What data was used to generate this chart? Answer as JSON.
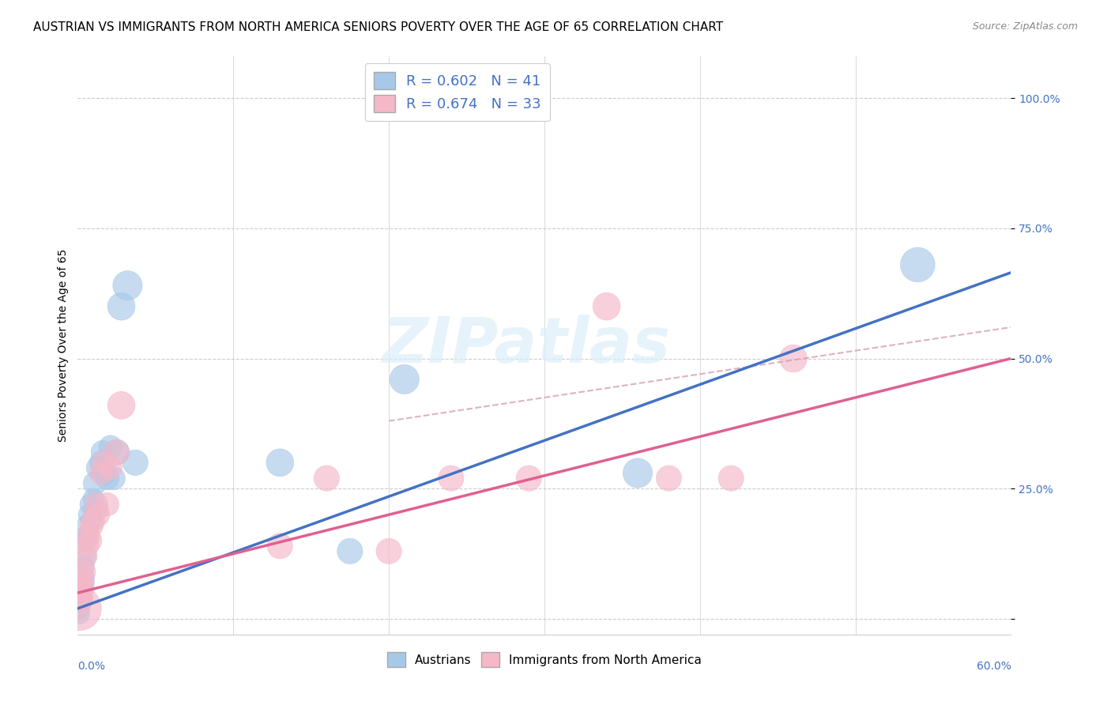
{
  "title": "AUSTRIAN VS IMMIGRANTS FROM NORTH AMERICA SENIORS POVERTY OVER THE AGE OF 65 CORRELATION CHART",
  "source": "Source: ZipAtlas.com",
  "ylabel": "Seniors Poverty Over the Age of 65",
  "yticks": [
    0.0,
    0.25,
    0.5,
    0.75,
    1.0
  ],
  "ytick_labels": [
    "",
    "25.0%",
    "50.0%",
    "75.0%",
    "100.0%"
  ],
  "xlim": [
    0.0,
    0.6
  ],
  "ylim": [
    -0.03,
    1.08
  ],
  "watermark": "ZIPatlas",
  "legend_blue_label": "R = 0.602   N = 41",
  "legend_pink_label": "R = 0.674   N = 33",
  "bottom_legend_blue": "Austrians",
  "bottom_legend_pink": "Immigrants from North America",
  "blue_color": "#a8c8e8",
  "pink_color": "#f4b8c8",
  "blue_line_color": "#4472c4",
  "pink_line_color": "#e06090",
  "title_fontsize": 11,
  "axis_label_fontsize": 10,
  "tick_fontsize": 10,
  "source_fontsize": 9,
  "legend_fontsize": 13,
  "austrians_x": [
    0.001,
    0.001,
    0.001,
    0.001,
    0.001,
    0.002,
    0.002,
    0.002,
    0.002,
    0.003,
    0.003,
    0.003,
    0.004,
    0.004,
    0.004,
    0.005,
    0.005,
    0.006,
    0.006,
    0.007,
    0.008,
    0.009,
    0.01,
    0.011,
    0.012,
    0.013,
    0.015,
    0.016,
    0.017,
    0.019,
    0.021,
    0.023,
    0.025,
    0.028,
    0.032,
    0.037,
    0.13,
    0.175,
    0.21,
    0.36,
    0.54
  ],
  "austrians_y": [
    0.02,
    0.03,
    0.04,
    0.05,
    0.01,
    0.03,
    0.04,
    0.06,
    0.05,
    0.04,
    0.07,
    0.06,
    0.08,
    0.1,
    0.07,
    0.12,
    0.15,
    0.16,
    0.18,
    0.2,
    0.22,
    0.19,
    0.23,
    0.26,
    0.21,
    0.29,
    0.3,
    0.32,
    0.28,
    0.27,
    0.33,
    0.27,
    0.32,
    0.6,
    0.64,
    0.3,
    0.3,
    0.13,
    0.46,
    0.28,
    0.68
  ],
  "austrians_size": [
    20,
    20,
    20,
    20,
    20,
    20,
    20,
    20,
    20,
    20,
    20,
    20,
    20,
    20,
    20,
    20,
    20,
    20,
    20,
    20,
    20,
    20,
    20,
    25,
    25,
    25,
    25,
    25,
    25,
    25,
    25,
    25,
    30,
    35,
    40,
    30,
    35,
    30,
    40,
    40,
    55
  ],
  "immigrants_x": [
    0.001,
    0.001,
    0.001,
    0.001,
    0.002,
    0.002,
    0.002,
    0.003,
    0.003,
    0.004,
    0.005,
    0.006,
    0.007,
    0.008,
    0.009,
    0.01,
    0.012,
    0.013,
    0.015,
    0.017,
    0.019,
    0.021,
    0.025,
    0.028,
    0.13,
    0.16,
    0.2,
    0.24,
    0.29,
    0.34,
    0.38,
    0.42,
    0.46
  ],
  "immigrants_y": [
    0.02,
    0.03,
    0.05,
    0.06,
    0.04,
    0.05,
    0.07,
    0.08,
    0.06,
    0.09,
    0.12,
    0.14,
    0.16,
    0.15,
    0.18,
    0.19,
    0.22,
    0.2,
    0.28,
    0.3,
    0.22,
    0.29,
    0.32,
    0.41,
    0.14,
    0.27,
    0.13,
    0.27,
    0.27,
    0.6,
    0.27,
    0.27,
    0.5
  ],
  "immigrants_size": [
    90,
    25,
    25,
    25,
    25,
    25,
    25,
    25,
    25,
    25,
    25,
    25,
    25,
    25,
    25,
    25,
    25,
    25,
    25,
    25,
    25,
    25,
    30,
    35,
    30,
    30,
    30,
    30,
    30,
    35,
    30,
    30,
    35
  ],
  "blue_line_x0": 0.0,
  "blue_line_y0": 0.02,
  "blue_line_x1": 0.6,
  "blue_line_y1": 0.665,
  "pink_line_x0": 0.0,
  "pink_line_y0": 0.05,
  "pink_line_x1": 0.6,
  "pink_line_y1": 0.5,
  "dash_line_x0": 0.2,
  "dash_line_y0": 0.38,
  "dash_line_x1": 0.6,
  "dash_line_y1": 0.56
}
